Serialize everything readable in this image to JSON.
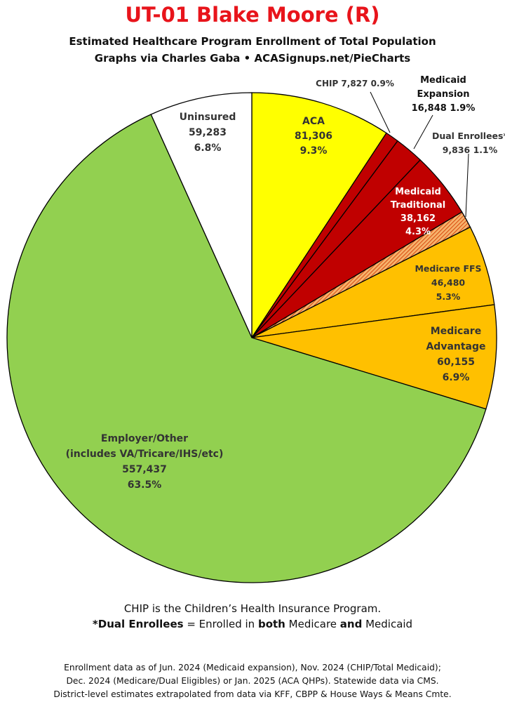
{
  "header": {
    "title": "UT-01 Blake Moore (R)",
    "subtitle_line1": "Estimated Healthcare Program Enrollment of Total Population",
    "subtitle_line2": "Graphs via Charles Gaba   •   ACASignups.net/PieCharts"
  },
  "chart_data": {
    "type": "pie",
    "title": "UT-01 Blake Moore (R)",
    "start_angle_deg": 0,
    "direction": "clockwise",
    "slices": [
      {
        "name": "ACA",
        "value": 81306,
        "percent": "9.3%",
        "value_label": "81,306",
        "color": "#ffff00",
        "label_color": "#333333"
      },
      {
        "name": "CHIP",
        "value": 7827,
        "percent": "0.9%",
        "value_label": "7,827",
        "color": "#c00000",
        "label_color": "#333333"
      },
      {
        "name": "Medicaid Expansion",
        "value": 16848,
        "percent": "1.9%",
        "value_label": "16,848",
        "color": "#c00000",
        "label_color": "#111111"
      },
      {
        "name": "Medicaid Traditional",
        "value": 38162,
        "percent": "4.3%",
        "value_label": "38,162",
        "color": "#c00000",
        "label_color": "#ffffff"
      },
      {
        "name": "Dual Enrollees*",
        "value": 9836,
        "percent": "1.1%",
        "value_label": "9,836",
        "color": "#f08a24",
        "hatched": true,
        "label_color": "#333333"
      },
      {
        "name": "Medicare FFS",
        "value": 46480,
        "percent": "5.3%",
        "value_label": "46,480",
        "color": "#ffc000",
        "label_color": "#333333"
      },
      {
        "name": "Medicare Advantage",
        "value": 60155,
        "percent": "6.9%",
        "value_label": "60,155",
        "color": "#ffc000",
        "label_color": "#333333"
      },
      {
        "name": "Employer/Other",
        "value": 557437,
        "percent": "63.5%",
        "value_label": "557,437",
        "color": "#92d050",
        "label_color": "#333333"
      },
      {
        "name": "Uninsured",
        "value": 59283,
        "percent": "6.8%",
        "value_label": "59,283",
        "color": "#ffffff",
        "label_color": "#333333"
      }
    ],
    "labels": {
      "aca": [
        "ACA",
        "81,306",
        "9.3%"
      ],
      "chip": "CHIP 7,827 0.9%",
      "medicaid_expansion": [
        "Medicaid",
        "Expansion",
        "16,848 1.9%"
      ],
      "dual": [
        "Dual Enrollees*",
        "9,836 1.1%"
      ],
      "medicaid_traditional": [
        "Medicaid",
        "Traditional",
        "38,162",
        "4.3%"
      ],
      "medicare_ffs": [
        "Medicare FFS",
        "46,480",
        "5.3%"
      ],
      "medicare_adv": [
        "Medicare",
        "Advantage",
        "60,155",
        "6.9%"
      ],
      "employer": [
        "Employer/Other",
        "(includes VA/Tricare/IHS/etc)",
        "557,437",
        "63.5%"
      ],
      "uninsured": [
        "Uninsured",
        "59,283",
        "6.8%"
      ]
    }
  },
  "notes": {
    "line1": "CHIP is the Children’s Health Insurance Program.",
    "line2_a": "*Dual Enrollees",
    "line2_b": " = Enrolled in ",
    "line2_c": "both",
    "line2_d": " Medicare ",
    "line2_e": "and",
    "line2_f": " Medicaid"
  },
  "footer": {
    "line1": "Enrollment data as of Jun. 2024 (Medicaid expansion), Nov. 2024 (CHIP/Total Medicaid);",
    "line2": "Dec. 2024 (Medicare/Dual Eligibles) or Jan. 2025 (ACA QHPs). Statewide data via CMS.",
    "line3": "District-level estimates extrapolated from data via KFF, CBPP & House Ways & Means Cmte."
  }
}
